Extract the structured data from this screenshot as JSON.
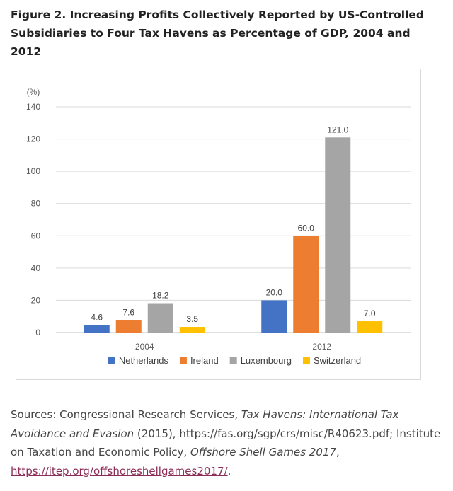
{
  "figure": {
    "title_line1": "Figure 2. Increasing Profits Collectively Reported by US-Controlled",
    "title_line2": "Subsidiaries to Four Tax Havens as Percentage of GDP, 2004 and 2012"
  },
  "chart_data": {
    "type": "bar",
    "title": "",
    "ylabel": "(%)",
    "xlabel": "",
    "ylim": [
      0,
      140
    ],
    "yticks": [
      0,
      20,
      40,
      60,
      80,
      100,
      120,
      140
    ],
    "grid": true,
    "legend_position": "bottom",
    "categories": [
      "2004",
      "2012"
    ],
    "series": [
      {
        "name": "Netherlands",
        "color": "#4472c4",
        "values": [
          4.6,
          20.0
        ],
        "labels": [
          "4.6",
          "20.0"
        ]
      },
      {
        "name": "Ireland",
        "color": "#ed7d31",
        "values": [
          7.6,
          60.0
        ],
        "labels": [
          "7.6",
          "60.0"
        ]
      },
      {
        "name": "Luxembourg",
        "color": "#a5a5a5",
        "values": [
          18.2,
          121.0
        ],
        "labels": [
          "18.2",
          "121.0"
        ]
      },
      {
        "name": "Switzerland",
        "color": "#ffc000",
        "values": [
          3.5,
          7.0
        ],
        "labels": [
          "3.5",
          "7.0"
        ]
      }
    ]
  },
  "sources": {
    "prefix": "Sources: Congressional Research Services, ",
    "title1": "Tax Havens: International Tax Avoidance and Evasion",
    "mid1": " (2015), https://fas.org/sgp/crs/misc/R40623.pdf; Institute on Taxation and Economic Policy, ",
    "title2": "Offshore Shell Games 2017",
    "mid2": ", ",
    "link": "https://itep.org/offshoreshellgames2017/",
    "suffix": "."
  }
}
